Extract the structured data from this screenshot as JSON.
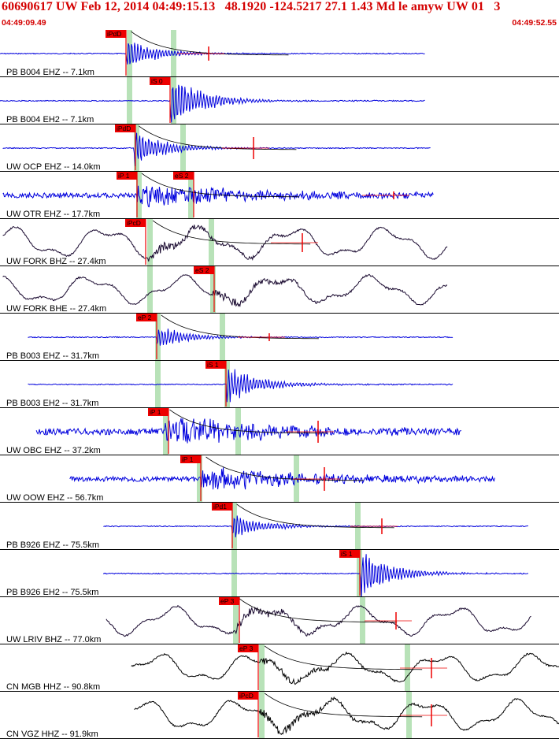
{
  "header": {
    "title": "60690617 UW Feb 12, 2014 04:49:15.13   48.1920 -124.5217 27.1 1.43 Md le amyw UW 01   3",
    "time_start": "04:49:09.49",
    "time_end": "04:49:52.55"
  },
  "colors": {
    "title": "#d40000",
    "trace_short_period": "#0000dd",
    "trace_broadband": "#1a0a30",
    "pick_marker": "#ee0000",
    "pick_window": "#b8e2b8",
    "separator": "#000000"
  },
  "traces": [
    {
      "label": "PB B004 EHZ -- 7.1km",
      "style": "blue",
      "picks": [
        {
          "text": "iPdD"
        }
      ],
      "waveform": {
        "start": 0.0,
        "end": 0.76,
        "onset": 0.226,
        "kind": "p",
        "amp": 18
      }
    },
    {
      "label": "PB B004 EH2 -- 7.1km",
      "style": "blue",
      "picks": [
        {
          "text": "iS 0"
        }
      ],
      "waveform": {
        "start": 0.0,
        "end": 0.76,
        "onset": 0.305,
        "kind": "s",
        "amp": 26
      }
    },
    {
      "label": "UW OCP EHZ -- 14.0km",
      "style": "blue",
      "picks": [
        {
          "text": "iPdD"
        }
      ],
      "waveform": {
        "start": 0.005,
        "end": 0.77,
        "onset": 0.24,
        "kind": "p",
        "amp": 22
      }
    },
    {
      "label": "UW OTR EHZ -- 17.7km",
      "style": "blue",
      "picks": [
        {
          "text": "iP 1"
        },
        {
          "text": "eS 2"
        }
      ],
      "waveform": {
        "start": 0.005,
        "end": 0.775,
        "onset": 0.245,
        "kind": "noise",
        "amp": 14
      }
    },
    {
      "label": "UW FORK BHZ -- 27.4km",
      "style": "dark",
      "picks": [
        {
          "text": "iPcD"
        }
      ],
      "waveform": {
        "start": 0.005,
        "end": 0.8,
        "onset": 0.265,
        "kind": "long",
        "amp": 22
      }
    },
    {
      "label": "UW FORK BHE -- 27.4km",
      "style": "dark",
      "picks": [
        {
          "text": "eS 2"
        }
      ],
      "waveform": {
        "start": 0.005,
        "end": 0.8,
        "onset": 0.38,
        "kind": "long",
        "amp": 20
      }
    },
    {
      "label": "PB B003 EHZ -- 31.7km",
      "style": "blue",
      "picks": [
        {
          "text": "eP 2"
        }
      ],
      "waveform": {
        "start": 0.05,
        "end": 0.81,
        "onset": 0.28,
        "kind": "p",
        "amp": 14
      }
    },
    {
      "label": "PB B003 EH2 -- 31.7km",
      "style": "blue",
      "picks": [
        {
          "text": "iS 1"
        }
      ],
      "waveform": {
        "start": 0.05,
        "end": 0.81,
        "onset": 0.405,
        "kind": "s",
        "amp": 18
      }
    },
    {
      "label": "UW OBC EHZ -- 37.2km",
      "style": "blue",
      "picks": [
        {
          "text": "iP 1"
        }
      ],
      "waveform": {
        "start": 0.065,
        "end": 0.825,
        "onset": 0.295,
        "kind": "noise",
        "amp": 18
      }
    },
    {
      "label": "UW OOW EHZ -- 56.7km",
      "style": "blue",
      "picks": [
        {
          "text": "iP 1"
        }
      ],
      "waveform": {
        "start": 0.125,
        "end": 0.885,
        "onset": 0.36,
        "kind": "noise",
        "amp": 14
      }
    },
    {
      "label": "PB B926 EHZ -- 75.5km",
      "style": "blue",
      "picks": [
        {
          "text": "iPd1"
        }
      ],
      "waveform": {
        "start": 0.185,
        "end": 0.945,
        "onset": 0.415,
        "kind": "p",
        "amp": 16
      }
    },
    {
      "label": "PB B926 EH2 -- 75.5km",
      "style": "blue",
      "picks": [
        {
          "text": "iS 1"
        }
      ],
      "waveform": {
        "start": 0.185,
        "end": 0.945,
        "onset": 0.645,
        "kind": "s",
        "amp": 22
      }
    },
    {
      "label": "UW LRIV BHZ -- 77.0km",
      "style": "dark",
      "picks": [
        {
          "text": "eP 3"
        }
      ],
      "waveform": {
        "start": 0.19,
        "end": 0.95,
        "onset": 0.42,
        "kind": "long",
        "amp": 20
      }
    },
    {
      "label": "CN MGB HHZ -- 90.8km",
      "style": "black",
      "picks": [
        {
          "text": "eP 3"
        }
      ],
      "waveform": {
        "start": 0.235,
        "end": 1.0,
        "onset": 0.465,
        "kind": "long",
        "amp": 20
      }
    },
    {
      "label": "CN VGZ HHZ -- 91.9km",
      "style": "black",
      "picks": [
        {
          "text": "iPcD"
        }
      ],
      "waveform": {
        "start": 0.24,
        "end": 1.0,
        "onset": 0.465,
        "kind": "long",
        "amp": 22
      }
    }
  ]
}
